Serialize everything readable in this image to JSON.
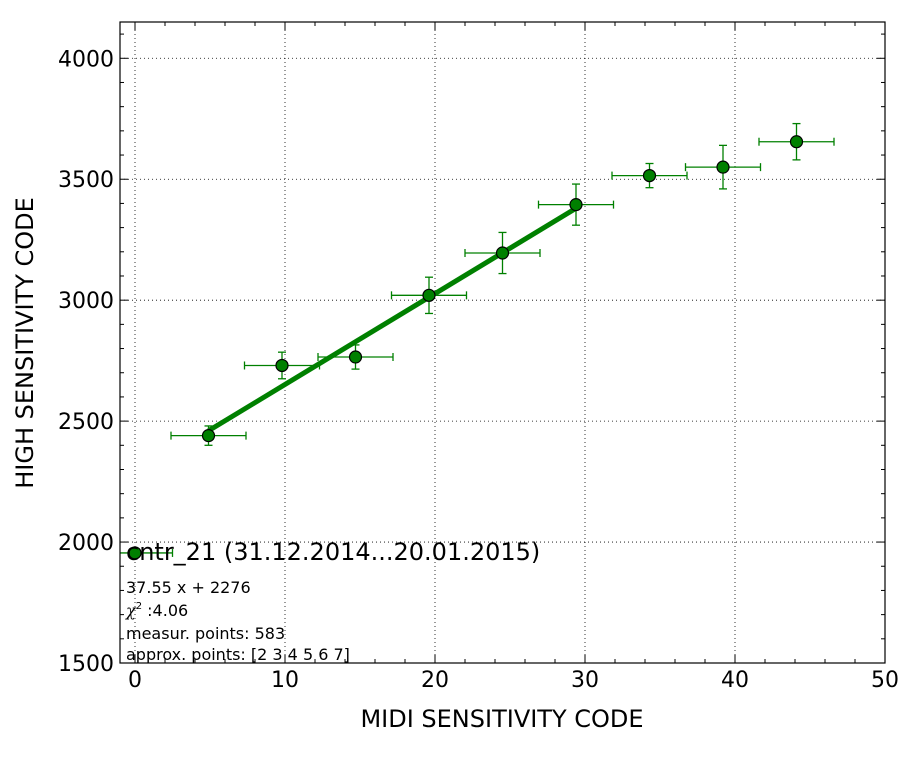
{
  "chart_data": {
    "type": "scatter",
    "xlabel": "MIDI SENSITIVITY CODE",
    "ylabel": "HIGH SENSITIVITY CODE",
    "xlim": [
      -1,
      50
    ],
    "ylim": [
      1500,
      4150
    ],
    "x_ticks": [
      0,
      10,
      20,
      30,
      40,
      50
    ],
    "y_ticks": [
      1500,
      2000,
      2500,
      3000,
      3500,
      4000
    ],
    "grid": true,
    "color": "#008000",
    "legend": {
      "label": "cntr_21 (31.12.2014...20.01.2015)",
      "placement": "lower-left"
    },
    "annotations": {
      "fit": "37.55 x + 2276",
      "chi2_symbol": "χ",
      "chi2_power": "2",
      "chi2_value": " :4.06",
      "points": "measur. points: 583",
      "approx": "approx. points: [2 3 4 5 6 7]"
    },
    "series": [
      {
        "name": "cntr_21 (31.12.2014...20.01.2015)",
        "points": [
          {
            "x": 0,
            "y": 1955,
            "xerr": 2.5,
            "yerr": 0
          },
          {
            "x": 4.9,
            "y": 2440,
            "xerr": 2.5,
            "yerr": 40
          },
          {
            "x": 9.8,
            "y": 2730,
            "xerr": 2.5,
            "yerr": 55
          },
          {
            "x": 14.7,
            "y": 2765,
            "xerr": 2.5,
            "yerr": 50
          },
          {
            "x": 19.6,
            "y": 3020,
            "xerr": 2.5,
            "yerr": 75
          },
          {
            "x": 24.5,
            "y": 3195,
            "xerr": 2.5,
            "yerr": 85
          },
          {
            "x": 29.4,
            "y": 3395,
            "xerr": 2.5,
            "yerr": 85
          },
          {
            "x": 34.3,
            "y": 3515,
            "xerr": 2.5,
            "yerr": 50
          },
          {
            "x": 39.2,
            "y": 3550,
            "xerr": 2.5,
            "yerr": 90
          },
          {
            "x": 44.1,
            "y": 3655,
            "xerr": 2.5,
            "yerr": 75
          }
        ]
      }
    ],
    "fit_line": {
      "slope": 37.55,
      "intercept": 2276,
      "x_start": 4.9,
      "x_end": 29.4
    }
  }
}
